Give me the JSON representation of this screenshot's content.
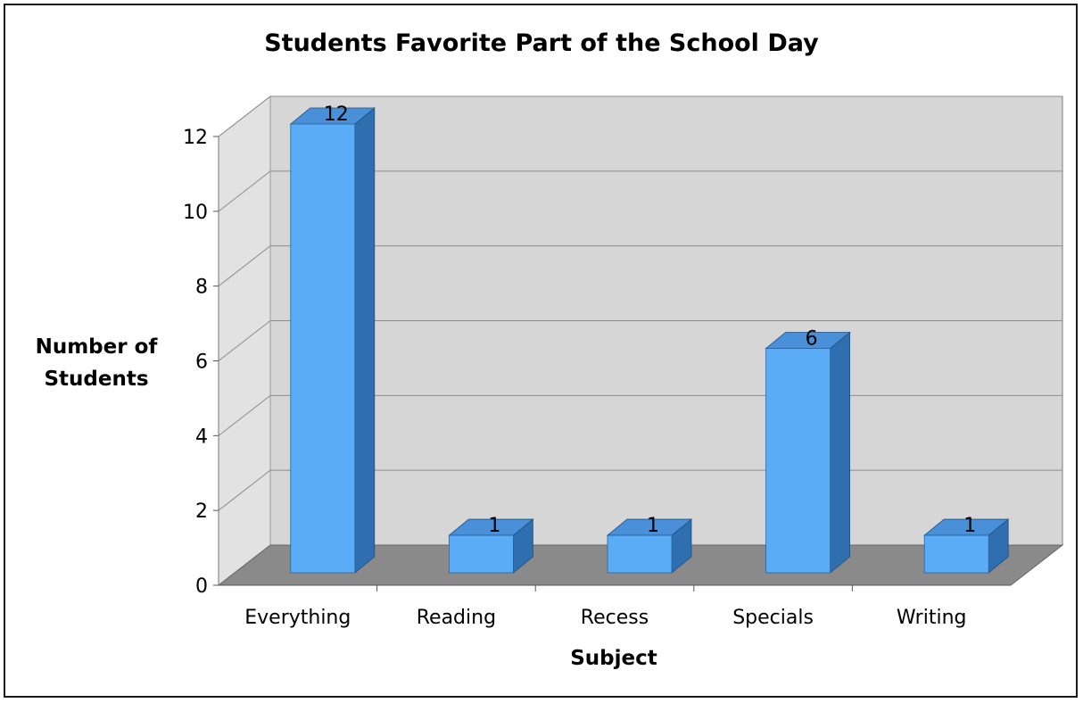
{
  "chart_data": {
    "type": "bar",
    "title": "Students Favorite Part of the School Day",
    "xlabel": "Subject",
    "ylabel_lines": [
      "Number of",
      "Students"
    ],
    "categories": [
      "Everything",
      "Reading",
      "Recess",
      "Specials",
      "Writing"
    ],
    "values": [
      12,
      1,
      1,
      6,
      1
    ],
    "ylim": [
      0,
      12
    ],
    "yticks": [
      "0",
      "2",
      "4",
      "6",
      "8",
      "10",
      "12"
    ],
    "data_labels": [
      "12",
      "1",
      "1",
      "6",
      "1"
    ],
    "grid": true,
    "legend": "none",
    "style": "3d",
    "colors": {
      "bar_front": "#5aacf6",
      "bar_side": "#2f6fb0",
      "bar_top": "#4a90d9",
      "wall": "#d6d6d6",
      "side_wall": "#e2e2e2",
      "floor": "#8a8a8a",
      "grid": "#8c8c8c"
    }
  }
}
